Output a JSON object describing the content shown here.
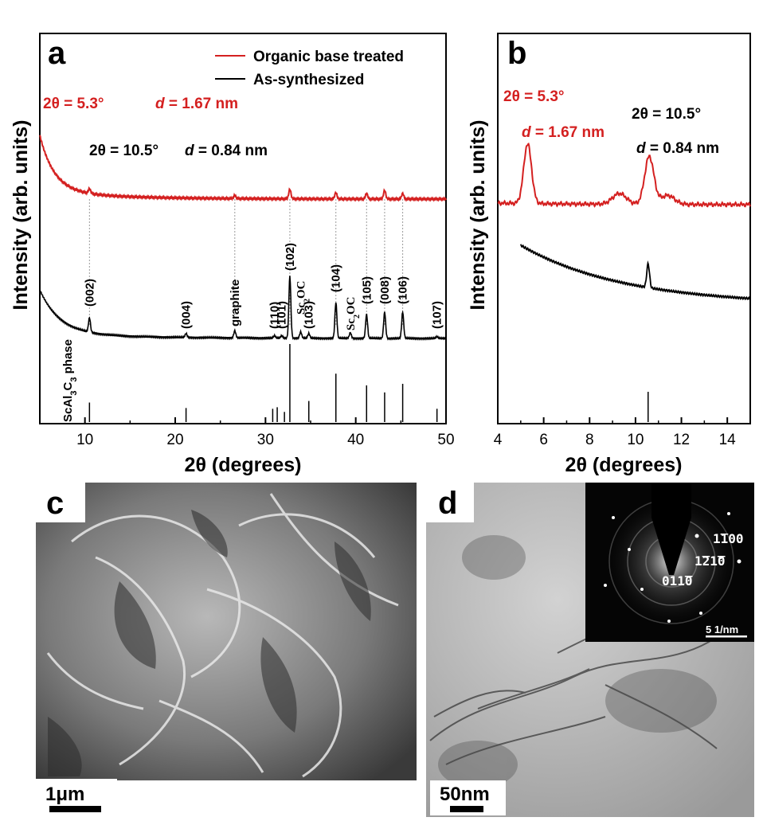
{
  "colors": {
    "treated": "#d42020",
    "synth": "#000000",
    "guide": "#9a9a9a"
  },
  "chart_data": [
    {
      "panel": "a",
      "type": "line",
      "xlabel": "2θ (degrees)",
      "ylabel": "Intensity (arb. units)",
      "xlim": [
        5,
        50
      ],
      "x_ticks": [
        "10",
        "20",
        "30",
        "40",
        "50"
      ],
      "legend": [
        {
          "name": "Organic base treated",
          "color": "#d42020"
        },
        {
          "name": "As-synthesized",
          "color": "#000000"
        }
      ],
      "annotations": {
        "red_peak_2theta": "2θ = 5.3°",
        "red_peak_d_prefix": "d",
        "red_peak_d_value": " = 1.67 nm",
        "black_peak_2theta": "2θ = 10.5°",
        "black_peak_d_prefix": "d",
        "black_peak_d_value": " = 0.84 nm"
      },
      "phase_label_main": "ScAl",
      "phase_label_sub1": "3",
      "phase_label_mid": "C",
      "phase_label_sub2": "3",
      "phase_label_end": " phase",
      "peaks": [
        {
          "label": "(002)",
          "x": 10.5,
          "h": 18
        },
        {
          "label": "(004)",
          "x": 21.2,
          "h": 5
        },
        {
          "label": "graphite",
          "x": 26.6,
          "h": 9
        },
        {
          "label": "(110)",
          "x": 31.0,
          "h": 3
        },
        {
          "label": "(101)",
          "x": 31.8,
          "h": 3
        },
        {
          "label": "(102)",
          "x": 32.7,
          "h": 78
        },
        {
          "label": "Sc2OC",
          "x": 33.9,
          "h": 8
        },
        {
          "label": "(103)",
          "x": 34.8,
          "h": 6
        },
        {
          "label": "(104)",
          "x": 37.8,
          "h": 45
        },
        {
          "label": "Sc2OC",
          "x": 39.4,
          "h": 7
        },
        {
          "label": "(105)",
          "x": 41.2,
          "h": 30
        },
        {
          "label": "(008)",
          "x": 43.2,
          "h": 33
        },
        {
          "label": "(106)",
          "x": 45.2,
          "h": 33
        },
        {
          "label": "(107)",
          "x": 49.0,
          "h": 2
        }
      ],
      "reference_bars": [
        {
          "x": 10.5,
          "h": 0.25
        },
        {
          "x": 21.2,
          "h": 0.18
        },
        {
          "x": 30.8,
          "h": 0.17
        },
        {
          "x": 31.3,
          "h": 0.19
        },
        {
          "x": 32.1,
          "h": 0.13
        },
        {
          "x": 32.7,
          "h": 1.0
        },
        {
          "x": 34.8,
          "h": 0.27
        },
        {
          "x": 37.8,
          "h": 0.62
        },
        {
          "x": 41.2,
          "h": 0.47
        },
        {
          "x": 43.2,
          "h": 0.38
        },
        {
          "x": 45.2,
          "h": 0.49
        },
        {
          "x": 49.0,
          "h": 0.17
        }
      ],
      "red_peaks": [
        {
          "x": 10.5,
          "h": 6
        },
        {
          "x": 26.6,
          "h": 4
        },
        {
          "x": 32.7,
          "h": 12
        },
        {
          "x": 37.8,
          "h": 8
        },
        {
          "x": 41.2,
          "h": 7
        },
        {
          "x": 43.2,
          "h": 11
        },
        {
          "x": 45.2,
          "h": 7
        }
      ]
    },
    {
      "panel": "b",
      "type": "line",
      "xlabel": "2θ (degrees)",
      "ylabel": "Intensity (arb. units)",
      "xlim": [
        4,
        15
      ],
      "x_ticks": [
        "4",
        "6",
        "8",
        "10",
        "12",
        "14"
      ],
      "annotations": {
        "red_2theta": "2θ = 5.3°",
        "red_d_prefix": "d",
        "red_d_value": " = 1.67 nm",
        "black_2theta": "2θ = 10.5°",
        "black_d_prefix": "d",
        "black_d_value": " = 0.84 nm"
      },
      "red_peaks": [
        {
          "x": 5.3,
          "h": 1.0
        },
        {
          "x": 9.3,
          "h": 0.18
        },
        {
          "x": 10.6,
          "h": 0.8
        },
        {
          "x": 11.4,
          "h": 0.15
        }
      ],
      "black_peaks": [
        {
          "x": 10.55,
          "h": 0.5
        }
      ],
      "reference_bars": [
        {
          "x": 10.55,
          "h": 1.0
        }
      ]
    }
  ],
  "panel_c": {
    "label": "c",
    "scale_bar": "1μm"
  },
  "panel_d": {
    "label": "d",
    "scale_bar": "50nm",
    "inset_scale_bar": "5 1/nm",
    "saed_labels": [
      "1̅100",
      "1̅21̅0",
      "011̅0"
    ]
  }
}
